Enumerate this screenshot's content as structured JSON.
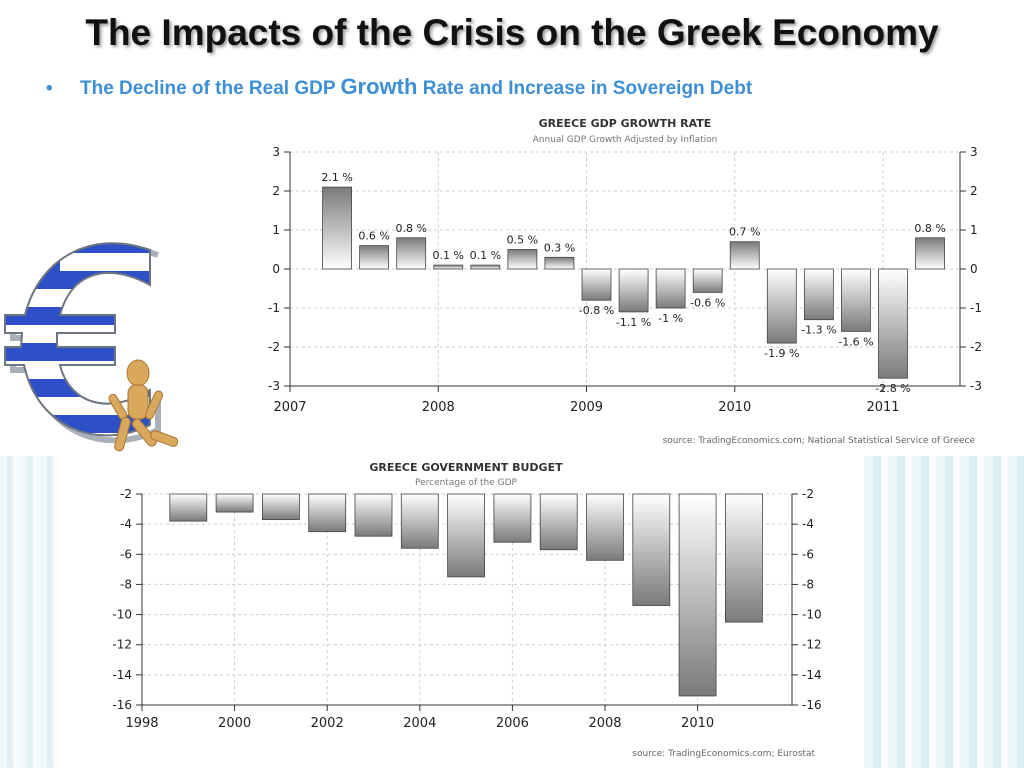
{
  "slide": {
    "title": "The Impacts of the Crisis on the Greek Economy",
    "bullet_char": "•",
    "bullet_part1": "The Decline of the Real GDP ",
    "bullet_emph": "Growth",
    "bullet_part2": " Rate and Increase in Sovereign Debt"
  },
  "chart_data": [
    {
      "type": "bar",
      "title": "GREECE GDP GROWTH RATE",
      "subtitle": "Annual GDP Growth Adjusted by Inflation",
      "x_ticks": [
        "2007",
        "2008",
        "2009",
        "2010",
        "2011"
      ],
      "ylim": [
        -3,
        3
      ],
      "y_ticks": [
        3,
        2,
        1,
        0,
        -1,
        -2,
        -3
      ],
      "x": [
        "2007 Q2",
        "2007 Q3",
        "2007 Q4",
        "2008 Q1",
        "2008 Q2",
        "2008 Q3",
        "2008 Q4",
        "2009 Q1",
        "2009 Q2",
        "2009 Q3",
        "2009 Q4",
        "2010 Q1",
        "2010 Q2",
        "2010 Q3",
        "2010 Q4",
        "2011 Q1",
        "2011 Q2"
      ],
      "values": [
        2.1,
        0.6,
        0.8,
        0.1,
        0.1,
        0.5,
        0.3,
        -0.8,
        -1.1,
        -1,
        -0.6,
        0.7,
        -1.9,
        -1.3,
        -1.6,
        -2.8,
        0.8
      ],
      "labels": [
        "2.1 %",
        "0.6 %",
        "0.8 %",
        "0.1 %",
        "0.1 %",
        "0.5 %",
        "0.3 %",
        "-0.8 %",
        "-1.1 %",
        "-1 %",
        "-0.6 %",
        "0.7 %",
        "-1.9 %",
        "-1.3 %",
        "-1.6 %",
        "-2.8 %",
        "0.8 %"
      ],
      "source": "source: TradingEconomics.com; National Statistical Service of Greece",
      "grid": true
    },
    {
      "type": "bar",
      "title": "GREECE GOVERNMENT BUDGET",
      "subtitle": "Percentage of the GDP",
      "x_ticks": [
        "1998",
        "2000",
        "2002",
        "2004",
        "2006",
        "2008",
        "2010"
      ],
      "ylim": [
        -16,
        -2
      ],
      "y_ticks": [
        -2,
        -4,
        -6,
        -8,
        -10,
        -12,
        -14,
        -16
      ],
      "x": [
        1999,
        2000,
        2001,
        2002,
        2003,
        2004,
        2005,
        2006,
        2007,
        2008,
        2009,
        2010,
        2011
      ],
      "values": [
        -3.8,
        -3.2,
        -3.7,
        -4.5,
        -4.8,
        -5.6,
        -7.5,
        -5.2,
        -5.7,
        -6.4,
        -9.4,
        -15.4,
        -10.5
      ],
      "source": "source: TradingEconomics.com; Eurostat",
      "grid": true
    }
  ],
  "colors": {
    "title": "#111111",
    "bullet": "#3d8fd6",
    "grid": "#cccccc",
    "bar_dark": "#808080",
    "bar_light": "#ffffff"
  },
  "icons": [
    "euro-sign-greek-flag-icon",
    "wooden-mannequin-icon"
  ]
}
